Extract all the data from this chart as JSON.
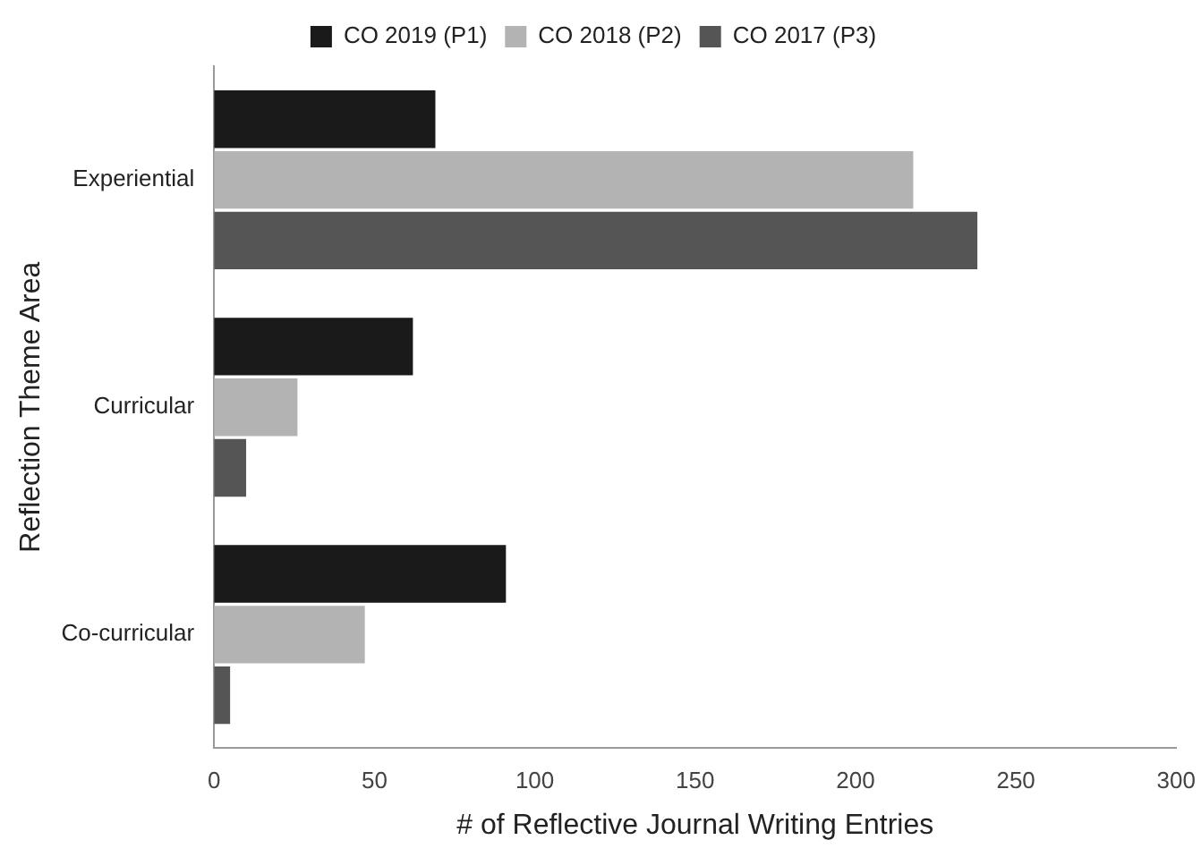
{
  "chart_data": {
    "type": "bar",
    "orientation": "horizontal",
    "categories": [
      "Experiential",
      "Curricular",
      "Co-curricular"
    ],
    "series": [
      {
        "name": "CO 2019 (P1)",
        "color": "#1a1a1a",
        "values": [
          69,
          62,
          91
        ]
      },
      {
        "name": "CO 2018 (P2)",
        "color": "#b3b3b3",
        "values": [
          218,
          26,
          47
        ]
      },
      {
        "name": "CO 2017 (P3)",
        "color": "#555555",
        "values": [
          238,
          10,
          5
        ]
      }
    ],
    "xlabel": "# of Reflective Journal Writing Entries",
    "ylabel": "Reflection Theme Area",
    "xlim": [
      0,
      300
    ],
    "xticks": [
      0,
      50,
      100,
      150,
      200,
      250,
      300
    ],
    "grid": false,
    "legend": "top"
  }
}
